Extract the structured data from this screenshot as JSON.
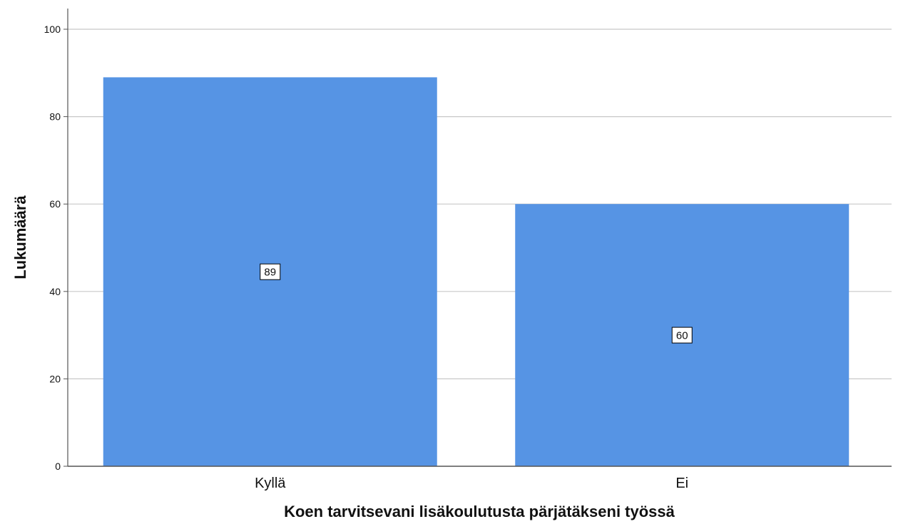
{
  "chart_data": {
    "type": "bar",
    "categories": [
      "Kyllä",
      "Ei"
    ],
    "values": [
      89,
      60
    ],
    "data_labels": [
      "89",
      "60"
    ],
    "xlabel": "Koen tarvitsevani lisäkoulutusta pärjätäkseni työssä",
    "ylabel": "Lukumäärä",
    "ylim": [
      0,
      100
    ],
    "yticks": [
      0,
      20,
      40,
      60,
      80,
      100
    ],
    "ytick_labels": [
      "0",
      "20",
      "40",
      "60",
      "80",
      "100"
    ],
    "grid": true,
    "legend": "none",
    "colors": {
      "bar": "#5694e4",
      "grid": "#c8c8c8",
      "axis": "#555555",
      "label_box_fill": "#ffffff",
      "label_box_stroke": "#000000"
    }
  }
}
